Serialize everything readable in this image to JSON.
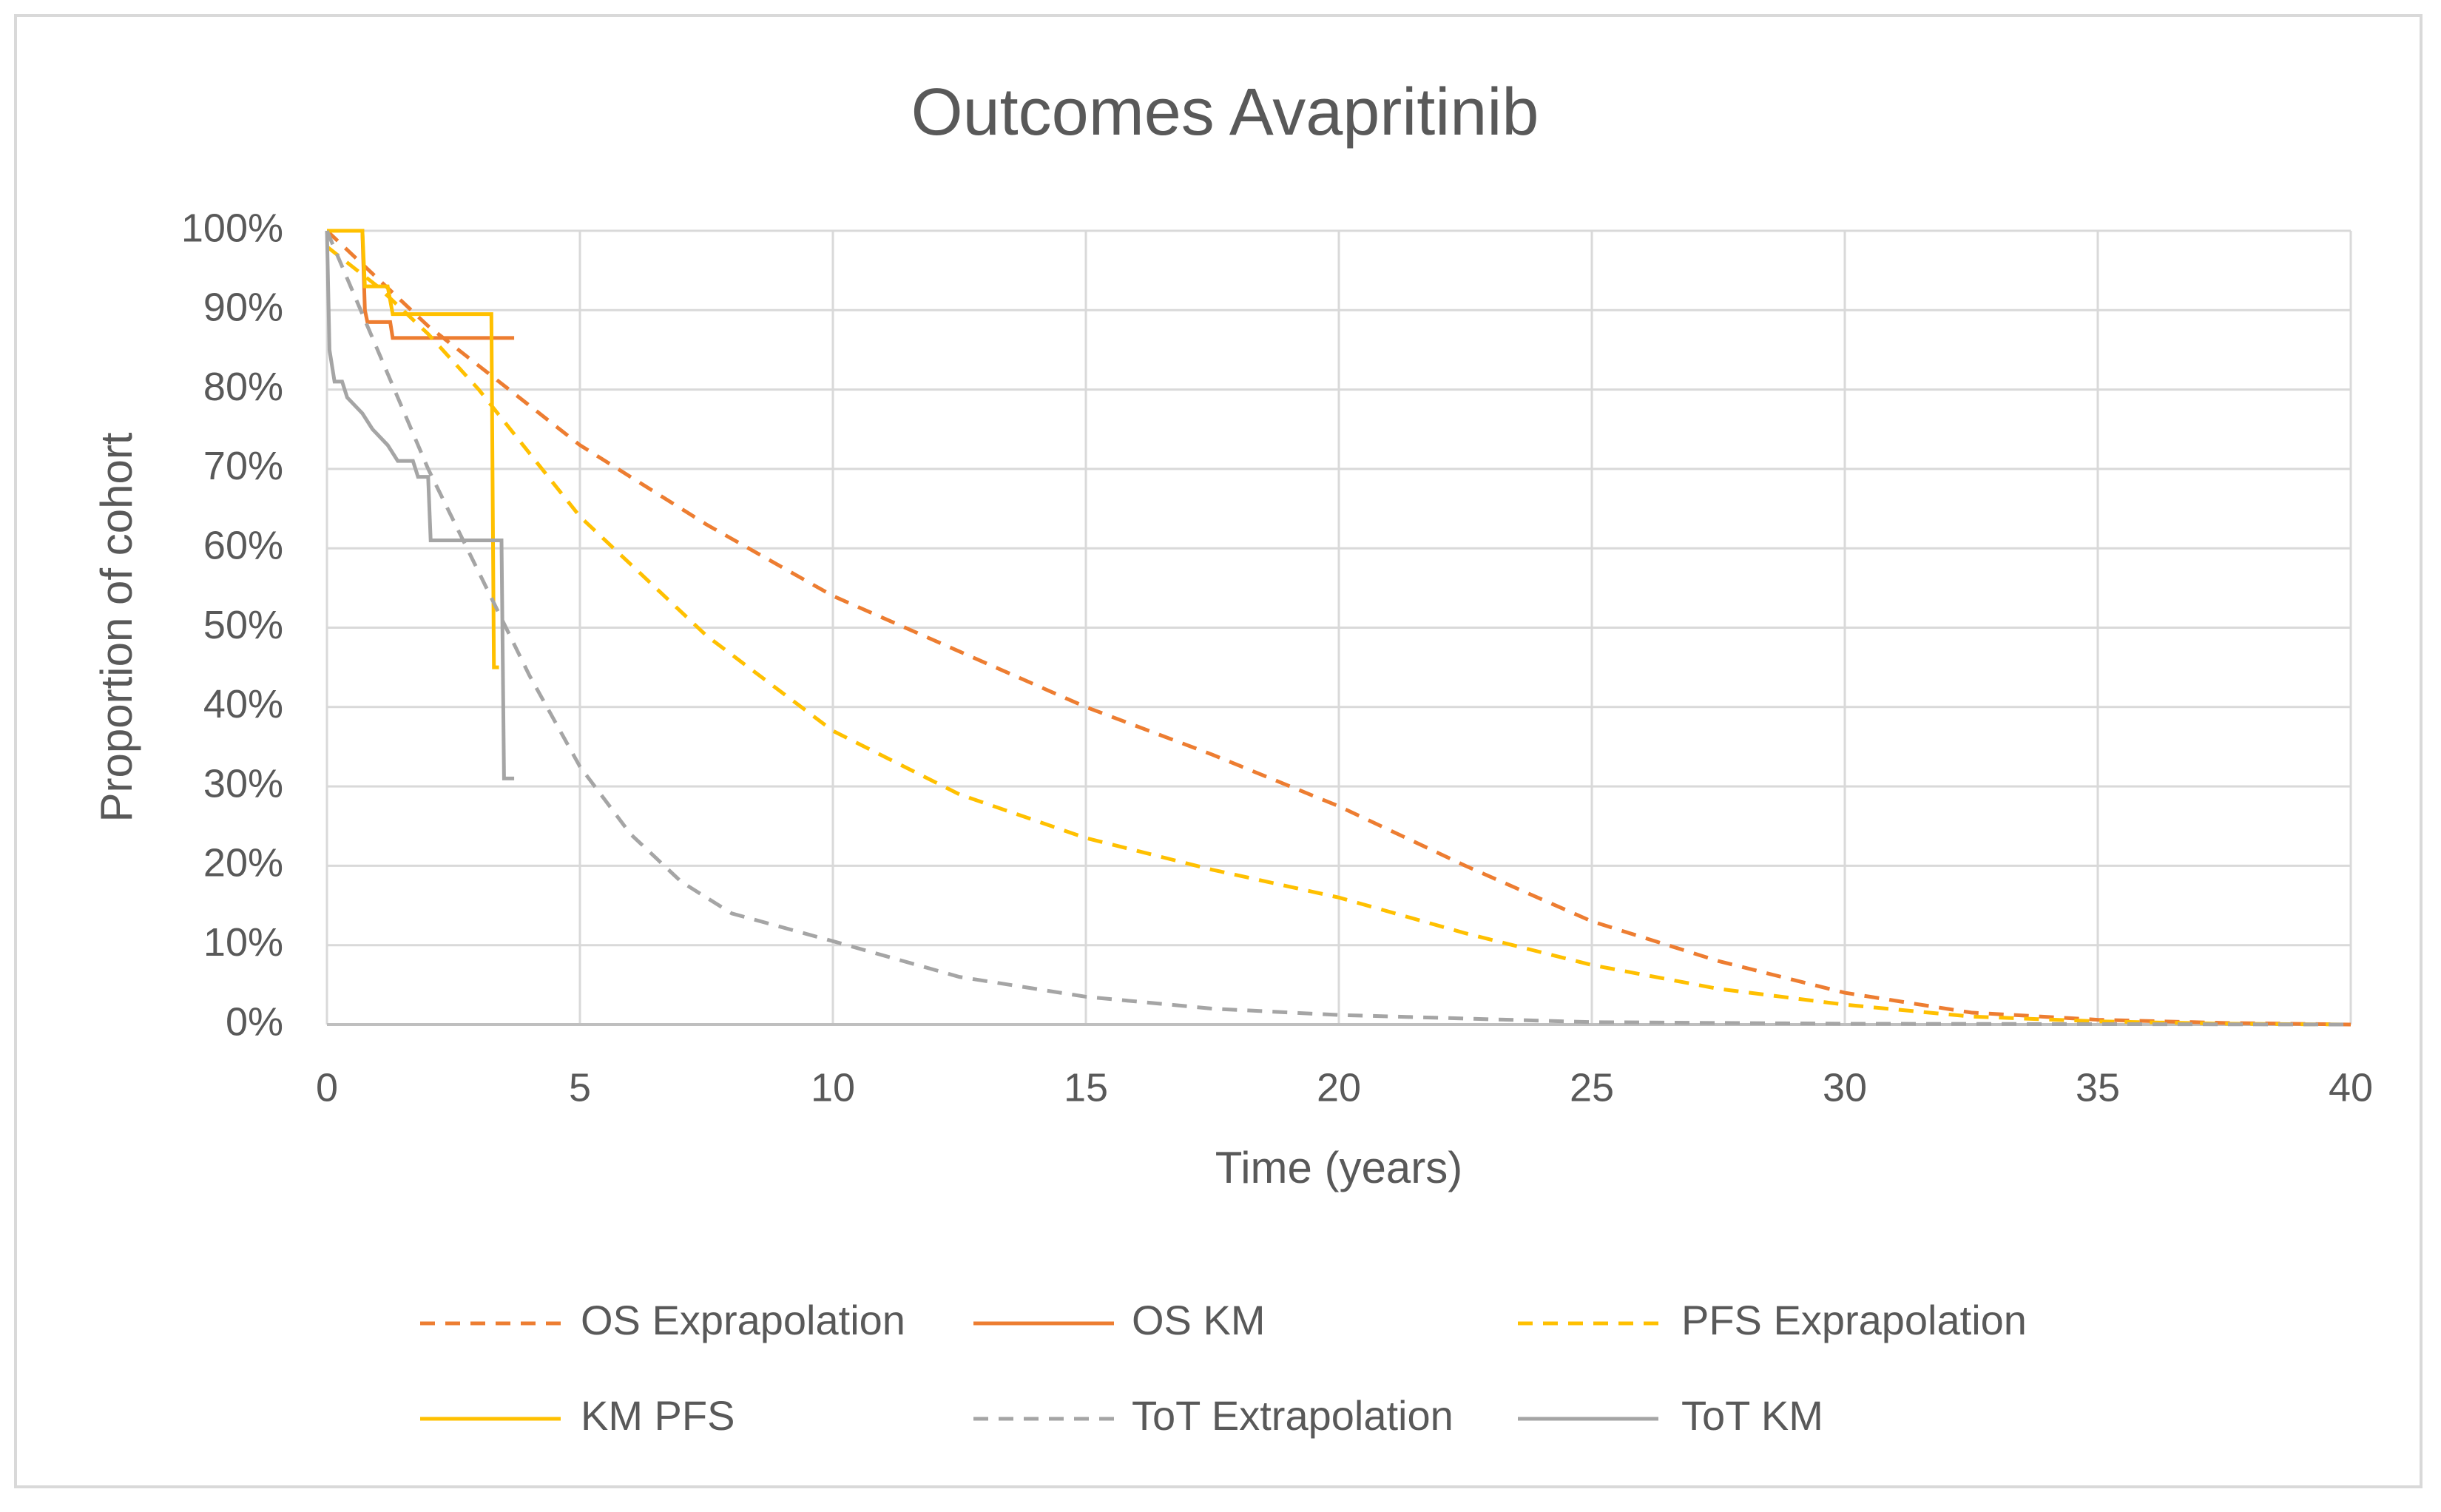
{
  "chart_data": {
    "type": "line",
    "title": "Outcomes Avapritinib",
    "xlabel": "Time (years)",
    "ylabel": "Proportion of cohort",
    "xlim": [
      0,
      40
    ],
    "xticks": [
      0,
      5,
      10,
      15,
      20,
      25,
      30,
      35,
      40
    ],
    "ylim": [
      0,
      100
    ],
    "yticks": [
      {
        "value": 0,
        "label": "0%"
      },
      {
        "value": 10,
        "label": "10%"
      },
      {
        "value": 20,
        "label": "20%"
      },
      {
        "value": 30,
        "label": "30%"
      },
      {
        "value": 40,
        "label": "40%"
      },
      {
        "value": 50,
        "label": "50%"
      },
      {
        "value": 60,
        "label": "60%"
      },
      {
        "value": 70,
        "label": "70%"
      },
      {
        "value": 80,
        "label": "80%"
      },
      {
        "value": 90,
        "label": "90%"
      },
      {
        "value": 100,
        "label": "100%"
      }
    ],
    "grid": true,
    "series": [
      {
        "name": "OS Exprapolation",
        "color": "#ED7D31",
        "dashed": true,
        "x": [
          0,
          1,
          2,
          3,
          4,
          5,
          7.5,
          10,
          12.5,
          15,
          17.5,
          20,
          22.5,
          25,
          27.5,
          30,
          32.5,
          35,
          37.5,
          40
        ],
        "values": [
          100,
          94,
          88,
          83,
          78,
          73,
          63,
          54,
          47,
          40,
          34,
          27.5,
          20,
          13,
          8,
          4,
          1.5,
          0.6,
          0.2,
          0
        ]
      },
      {
        "name": "OS KM",
        "color": "#ED7D31",
        "dashed": false,
        "x": [
          0,
          0.7,
          0.75,
          0.8,
          1.25,
          1.3,
          3.7
        ],
        "values": [
          100,
          100,
          90,
          88.5,
          88.5,
          86.5,
          86.5
        ]
      },
      {
        "name": "PFS Exprapolation",
        "color": "#FFC000",
        "dashed": true,
        "x": [
          0,
          1,
          2,
          3,
          4,
          5,
          7.5,
          10,
          12.5,
          15,
          17.5,
          20,
          22.5,
          25,
          27.5,
          30,
          32.5,
          35,
          37.5,
          40
        ],
        "values": [
          98,
          93,
          87,
          80,
          72,
          64,
          49,
          37,
          29,
          23.5,
          19.5,
          16,
          11.5,
          7.5,
          4.5,
          2.5,
          1,
          0.4,
          0.1,
          0
        ]
      },
      {
        "name": "KM PFS",
        "color": "#FFC000",
        "dashed": false,
        "x": [
          0,
          0.7,
          0.75,
          1.2,
          1.3,
          3.25,
          3.3,
          3.4
        ],
        "values": [
          100,
          100,
          93,
          93,
          89.5,
          89.5,
          45,
          45
        ]
      },
      {
        "name": "ToT Extrapolation",
        "color": "#A5A5A5",
        "dashed": true,
        "x": [
          0,
          1,
          2,
          3,
          4,
          5,
          6,
          7,
          8,
          10,
          12.5,
          15,
          17.5,
          20,
          25,
          30,
          40
        ],
        "values": [
          100,
          85,
          70,
          57,
          44,
          32.5,
          24,
          18,
          14,
          10.5,
          6,
          3.5,
          2,
          1.2,
          0.3,
          0.1,
          0
        ]
      },
      {
        "name": "ToT KM",
        "color": "#A5A5A5",
        "dashed": false,
        "x": [
          0,
          0.05,
          0.15,
          0.3,
          0.4,
          0.7,
          0.9,
          1.2,
          1.4,
          1.7,
          1.8,
          2,
          2.05,
          3.45,
          3.5,
          3.7
        ],
        "values": [
          100,
          85,
          81,
          81,
          79,
          77,
          75,
          73,
          71,
          71,
          69,
          69,
          61,
          61,
          31,
          31
        ]
      }
    ]
  }
}
